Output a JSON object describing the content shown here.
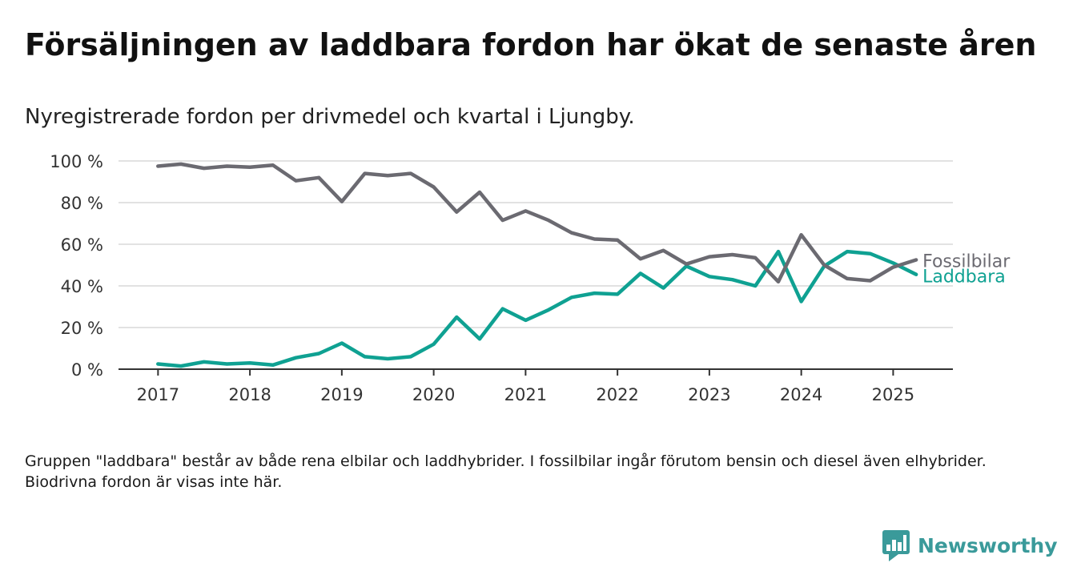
{
  "title": "Försäljningen av laddbara fordon har ökat de senaste åren",
  "subtitle": "Nyregistrerade fordon per drivmedel och kvartal i Ljungby.",
  "footnote": "Gruppen \"laddbara\" består av både rena elbilar och laddhybrider. I fossilbilar ingår förutom bensin och diesel även elhybrider. Biodrivna fordon är visas inte här.",
  "brand": {
    "name": "Newsworthy",
    "icon": "newsworthy-logo-icon"
  },
  "colors": {
    "fossil": "#6b6a71",
    "laddbara": "#0fa192",
    "grid": "#d9d9d9",
    "axis": "#333333",
    "tick_text": "#333333",
    "brand": "#3a9a9a"
  },
  "chart_data": {
    "type": "line",
    "title": "",
    "xlabel": "",
    "ylabel": "",
    "x": [
      2017.0,
      2017.25,
      2017.5,
      2017.75,
      2018.0,
      2018.25,
      2018.5,
      2018.75,
      2019.0,
      2019.25,
      2019.5,
      2019.75,
      2020.0,
      2020.25,
      2020.5,
      2020.75,
      2021.0,
      2021.25,
      2021.5,
      2021.75,
      2022.0,
      2022.25,
      2022.5,
      2022.75,
      2023.0,
      2023.25,
      2023.5,
      2023.75,
      2024.0,
      2024.25,
      2024.5,
      2024.75,
      2025.0,
      2025.25
    ],
    "xlim": [
      2016.57,
      2025.65
    ],
    "ylim": [
      0,
      100
    ],
    "x_ticks": [
      2017,
      2018,
      2019,
      2020,
      2021,
      2022,
      2023,
      2024,
      2025
    ],
    "x_tick_labels": [
      "2017",
      "2018",
      "2019",
      "2020",
      "2021",
      "2022",
      "2023",
      "2024",
      "2025"
    ],
    "y_ticks": [
      0,
      20,
      40,
      60,
      80,
      100
    ],
    "y_tick_labels": [
      "0 %",
      "20 %",
      "40 %",
      "60 %",
      "80 %",
      "100 %"
    ],
    "grid": true,
    "legend": "inline-right",
    "series": [
      {
        "name": "Fossilbilar",
        "color": "#6b6a71",
        "values": [
          97.5,
          98.5,
          96.5,
          97.5,
          97.0,
          98.0,
          90.5,
          92.0,
          80.5,
          94.0,
          93.0,
          94.0,
          87.5,
          75.5,
          85.0,
          71.5,
          76.0,
          71.5,
          65.5,
          62.5,
          62.0,
          53.0,
          57.0,
          50.5,
          54.0,
          55.0,
          53.5,
          42.0,
          64.5,
          50.0,
          43.5,
          42.5,
          49.0,
          52.5
        ]
      },
      {
        "name": "Laddbara",
        "color": "#0fa192",
        "values": [
          2.5,
          1.5,
          3.5,
          2.5,
          3.0,
          2.0,
          5.5,
          7.5,
          12.5,
          6.0,
          5.0,
          6.0,
          12.0,
          25.0,
          14.5,
          29.0,
          23.5,
          28.5,
          34.5,
          36.5,
          36.0,
          46.0,
          39.0,
          49.5,
          44.5,
          43.0,
          40.0,
          56.5,
          32.5,
          49.5,
          56.5,
          55.5,
          51.0,
          45.5
        ]
      }
    ]
  }
}
